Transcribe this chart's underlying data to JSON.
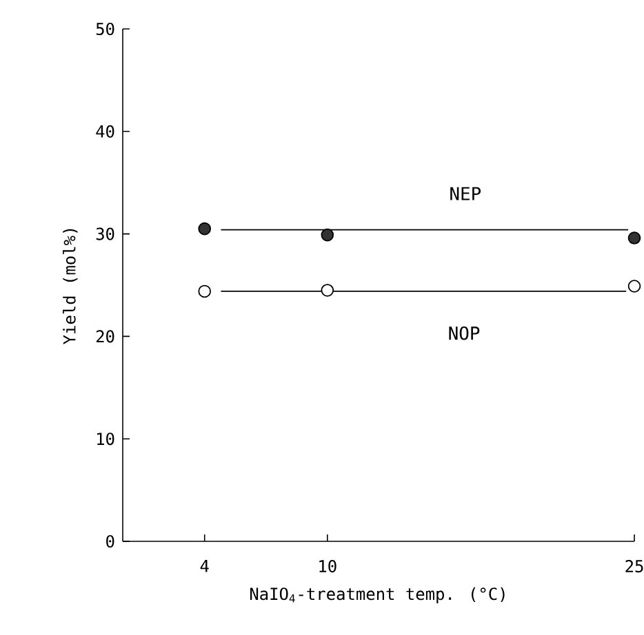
{
  "chart_data": {
    "type": "scatter",
    "xlabel": "NaIO$_{4}$-treatment temp. (°C)",
    "ylabel": "Yield (mol%)",
    "xlim": [
      0,
      25
    ],
    "ylim": [
      0,
      50
    ],
    "xticks": [
      4,
      10,
      25
    ],
    "yticks": [
      0,
      10,
      20,
      30,
      40,
      50
    ],
    "grid": false,
    "legend": false,
    "x": [
      4,
      10,
      25
    ],
    "series": [
      {
        "type": "line",
        "name": "NEP",
        "color": "#000000",
        "marker": "none",
        "x": [
          4.8,
          24.7
        ],
        "values": [
          30.4,
          30.4
        ]
      },
      {
        "type": "line",
        "name": "NOP",
        "color": "#000000",
        "marker": "none",
        "x": [
          4.8,
          24.6
        ],
        "values": [
          24.4,
          24.4
        ]
      },
      {
        "color": "#333333",
        "marker": "circle",
        "values": [
          30.5,
          29.9,
          29.6
        ]
      },
      {
        "color": "#ffffff",
        "marker": "circle",
        "values": [
          24.4,
          24.5,
          24.9
        ]
      }
    ]
  }
}
